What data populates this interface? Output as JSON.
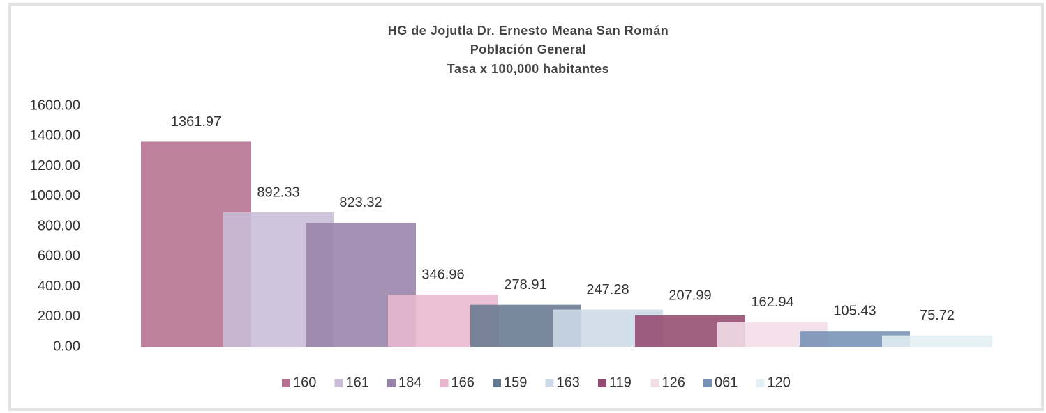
{
  "chart_data": {
    "type": "bar",
    "title": [
      "HG de Jojutla Dr. Ernesto Meana San Román",
      "Población General",
      "Tasa x 100,000 habitantes"
    ],
    "categories": [
      null
    ],
    "series": [
      {
        "name": "160",
        "color": "#b5708f",
        "values": [
          1361.97
        ]
      },
      {
        "name": "161",
        "color": "#c9bdd8",
        "values": [
          892.33
        ]
      },
      {
        "name": "184",
        "color": "#9683a9",
        "values": [
          823.32
        ]
      },
      {
        "name": "166",
        "color": "#e8b7cf",
        "values": [
          346.96
        ]
      },
      {
        "name": "159",
        "color": "#66788f",
        "values": [
          278.91
        ]
      },
      {
        "name": "163",
        "color": "#cdd9e8",
        "values": [
          247.28
        ]
      },
      {
        "name": "119",
        "color": "#944a6e",
        "values": [
          207.99
        ]
      },
      {
        "name": "126",
        "color": "#f2dde7",
        "values": [
          162.94
        ]
      },
      {
        "name": "061",
        "color": "#7691b5",
        "values": [
          105.43
        ]
      },
      {
        "name": "120",
        "color": "#e3eff4",
        "values": [
          75.72
        ]
      }
    ],
    "ylim": [
      0,
      1600
    ],
    "yticks": [
      {
        "value": 0,
        "label": "0.00"
      },
      {
        "value": 200,
        "label": "200.00"
      },
      {
        "value": 400,
        "label": "400.00"
      },
      {
        "value": 600,
        "label": "600.00"
      },
      {
        "value": 800,
        "label": "800.00"
      },
      {
        "value": 1000,
        "label": "1000.00"
      },
      {
        "value": 1200,
        "label": "1200.00"
      },
      {
        "value": 1400,
        "label": "1400.00"
      },
      {
        "value": 1600,
        "label": "1600.00"
      }
    ],
    "grid": false,
    "legend": "bottom"
  }
}
